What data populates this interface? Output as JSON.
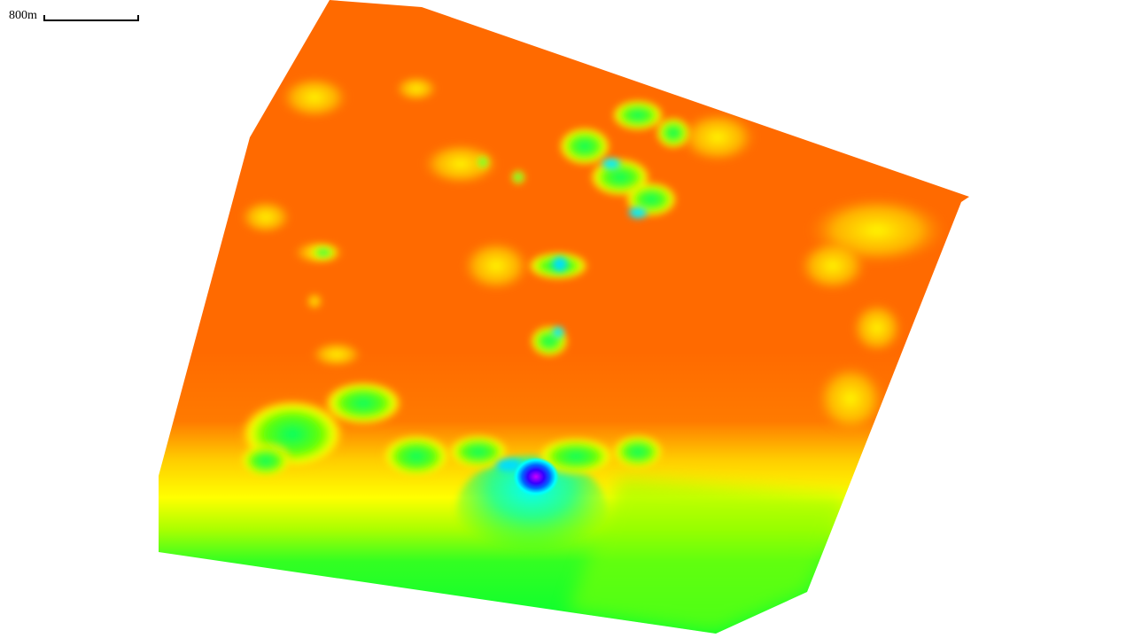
{
  "scale": {
    "label": "800m"
  },
  "heatmap": {
    "colors": {
      "high": "#ff6600",
      "mid_high": "#ffd000",
      "mid": "#ffff00",
      "mid_low": "#00ff33",
      "low": "#00ffff",
      "lowest": "#0000ff",
      "min_peak": "#cc00ff"
    }
  }
}
